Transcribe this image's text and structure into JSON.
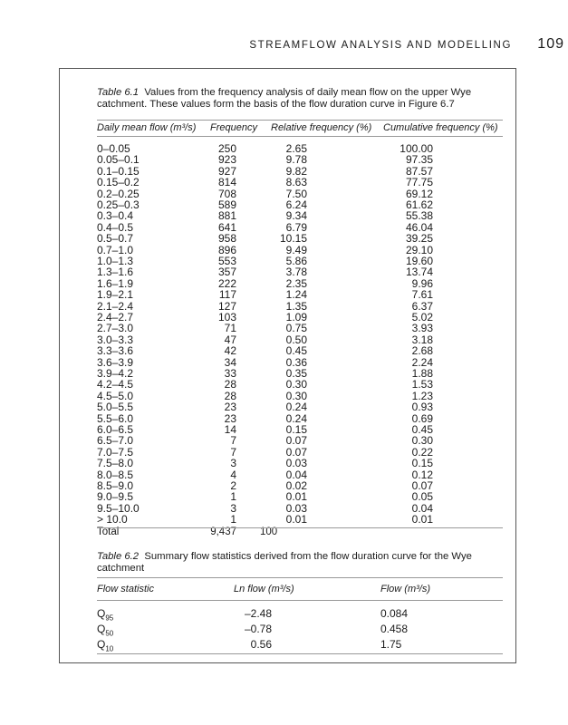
{
  "running_head": "STREAMFLOW ANALYSIS AND MODELLING",
  "page_number": "109",
  "table1": {
    "label": "Table 6.1",
    "caption": "Values from the frequency analysis of daily mean flow on the upper Wye catchment. These values form the basis of the flow duration curve in Figure 6.7",
    "headers": [
      "Daily mean flow (m³/s)",
      "Frequency",
      "Relative frequency (%)",
      "Cumulative frequency (%)"
    ],
    "rows": [
      [
        "0–0.05",
        "250",
        "2.65",
        "100.00"
      ],
      [
        "0.05–0.1",
        "923",
        "9.78",
        "97.35"
      ],
      [
        "0.1–0.15",
        "927",
        "9.82",
        "87.57"
      ],
      [
        "0.15–0.2",
        "814",
        "8.63",
        "77.75"
      ],
      [
        "0.2–0.25",
        "708",
        "7.50",
        "69.12"
      ],
      [
        "0.25–0.3",
        "589",
        "6.24",
        "61.62"
      ],
      [
        "0.3–0.4",
        "881",
        "9.34",
        "55.38"
      ],
      [
        "0.4–0.5",
        "641",
        "6.79",
        "46.04"
      ],
      [
        "0.5–0.7",
        "958",
        "10.15",
        "39.25"
      ],
      [
        "0.7–1.0",
        "896",
        "9.49",
        "29.10"
      ],
      [
        "1.0–1.3",
        "553",
        "5.86",
        "19.60"
      ],
      [
        "1.3–1.6",
        "357",
        "3.78",
        "13.74"
      ],
      [
        "1.6–1.9",
        "222",
        "2.35",
        "9.96"
      ],
      [
        "1.9–2.1",
        "117",
        "1.24",
        "7.61"
      ],
      [
        "2.1–2.4",
        "127",
        "1.35",
        "6.37"
      ],
      [
        "2.4–2.7",
        "103",
        "1.09",
        "5.02"
      ],
      [
        "2.7–3.0",
        "71",
        "0.75",
        "3.93"
      ],
      [
        "3.0–3.3",
        "47",
        "0.50",
        "3.18"
      ],
      [
        "3.3–3.6",
        "42",
        "0.45",
        "2.68"
      ],
      [
        "3.6–3.9",
        "34",
        "0.36",
        "2.24"
      ],
      [
        "3.9–4.2",
        "33",
        "0.35",
        "1.88"
      ],
      [
        "4.2–4.5",
        "28",
        "0.30",
        "1.53"
      ],
      [
        "4.5–5.0",
        "28",
        "0.30",
        "1.23"
      ],
      [
        "5.0–5.5",
        "23",
        "0.24",
        "0.93"
      ],
      [
        "5.5–6.0",
        "23",
        "0.24",
        "0.69"
      ],
      [
        "6.0–6.5",
        "14",
        "0.15",
        "0.45"
      ],
      [
        "6.5–7.0",
        "7",
        "0.07",
        "0.30"
      ],
      [
        "7.0–7.5",
        "7",
        "0.07",
        "0.22"
      ],
      [
        "7.5–8.0",
        "3",
        "0.03",
        "0.15"
      ],
      [
        "8.0–8.5",
        "4",
        "0.04",
        "0.12"
      ],
      [
        "8.5–9.0",
        "2",
        "0.02",
        "0.07"
      ],
      [
        "9.0–9.5",
        "1",
        "0.01",
        "0.05"
      ],
      [
        "9.5–10.0",
        "3",
        "0.03",
        "0.04"
      ],
      [
        "> 10.0",
        "1",
        "0.01",
        "0.01"
      ]
    ],
    "total": [
      "Total",
      "9,437",
      "100",
      ""
    ]
  },
  "table2": {
    "label": "Table 6.2",
    "caption": "Summary flow statistics derived from the flow duration curve for the Wye catchment",
    "headers": [
      "Flow statistic",
      "Ln flow (m³/s)",
      "Flow (m³/s)"
    ],
    "rows": [
      {
        "q": "Q",
        "sub": "95",
        "ln": "–2.48",
        "flow": "0.084"
      },
      {
        "q": "Q",
        "sub": "50",
        "ln": "–0.78",
        "flow": "0.458"
      },
      {
        "q": "Q",
        "sub": "10",
        "ln": "0.56",
        "flow": "1.75"
      }
    ]
  }
}
